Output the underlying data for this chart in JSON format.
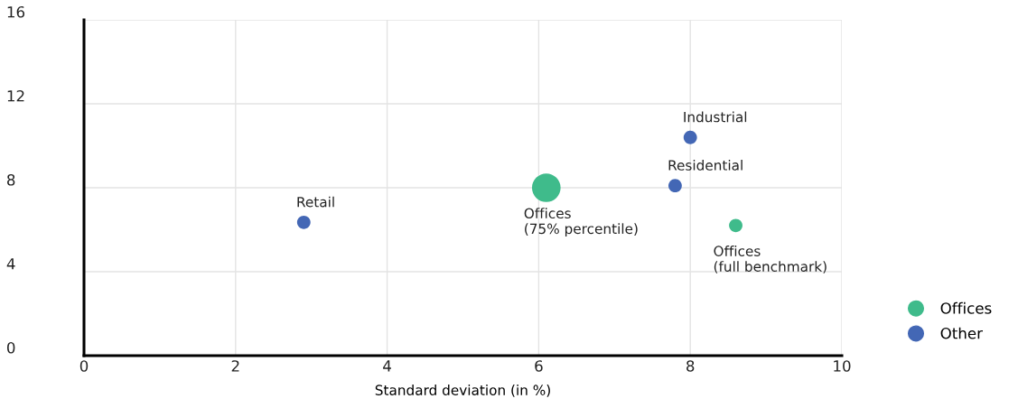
{
  "chart_data": {
    "type": "bubble",
    "xlabel": "Standard deviation (in %)",
    "xlim": [
      0,
      10
    ],
    "xticks": [
      0,
      2,
      4,
      6,
      8,
      10
    ],
    "ylim": [
      0,
      16
    ],
    "yticks": [
      0,
      4,
      8,
      12,
      16
    ],
    "grid": true,
    "legend": "right",
    "series": [
      {
        "name": "Offices",
        "color": "#3fbb8b",
        "x": [
          6.1,
          8.6
        ],
        "values": [
          8.0,
          6.2
        ],
        "sizes": [
          1,
          0.22
        ]
      },
      {
        "name": "Other",
        "color": "#4367b5",
        "x": [
          2.9,
          8.0,
          7.8
        ],
        "values": [
          6.35,
          10.4,
          8.1
        ],
        "sizes": [
          0.22,
          0.22,
          0.22
        ]
      }
    ],
    "annotations": [
      {
        "text": "Retail",
        "x": 2.9,
        "y": 6.35
      },
      {
        "text": "Offices\n(75% percentile)",
        "x": 6.1,
        "y": 8.0
      },
      {
        "text": "Industrial",
        "x": 8.0,
        "y": 10.4
      },
      {
        "text": "Residential",
        "x": 7.8,
        "y": 8.1
      },
      {
        "text": "Offices\n(full benchmark)",
        "x": 8.6,
        "y": 6.2
      }
    ]
  }
}
